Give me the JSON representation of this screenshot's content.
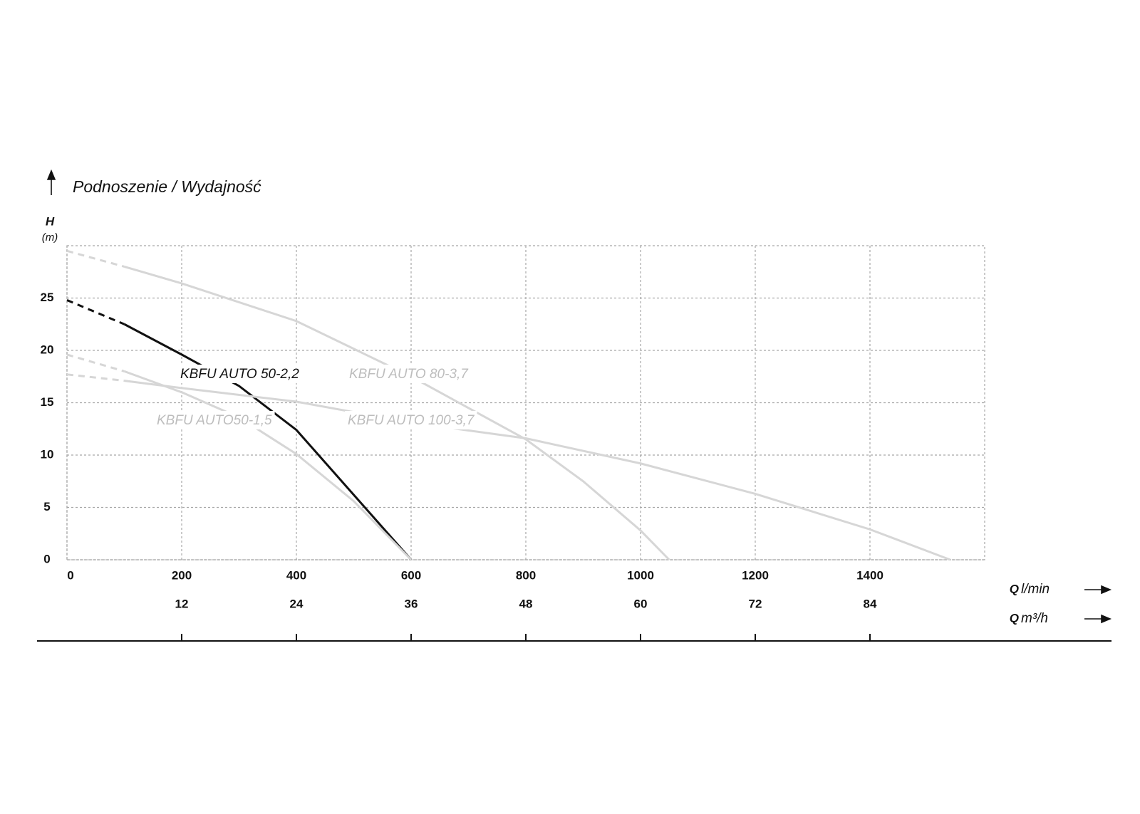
{
  "chart_data": {
    "type": "line",
    "title": "Podnoszenie / Wydajność",
    "ylabel": "H",
    "yunit": "(m)",
    "xlabel": "Q",
    "xunit": "l/min",
    "x2label": "Q",
    "x2unit": "m³/h",
    "xlim": [
      0,
      1600
    ],
    "xticks": [
      0,
      200,
      400,
      600,
      800,
      1000,
      1200,
      1400
    ],
    "x2lim": [
      0,
      96
    ],
    "x2ticks": [
      12,
      24,
      36,
      48,
      60,
      72,
      84
    ],
    "ylim": [
      0,
      30
    ],
    "yticks": [
      0,
      5,
      10,
      15,
      20,
      25
    ],
    "grid": true,
    "dashed_below_x": 100,
    "series": [
      {
        "name": "KBFU AUTO 50-2,2",
        "color": "#111111",
        "x": [
          0,
          100,
          200,
          300,
          400,
          500,
          600
        ],
        "values": [
          24.8,
          22.5,
          19.6,
          16.6,
          12.4,
          6.2,
          0
        ]
      },
      {
        "name": "KBFU AUTO 80-3,7",
        "color": "#d6d6d6",
        "x": [
          0,
          100,
          200,
          400,
          600,
          800,
          900,
          1000,
          1050
        ],
        "values": [
          29.5,
          28,
          26.4,
          22.8,
          17.5,
          11.5,
          7.5,
          2.8,
          0
        ]
      },
      {
        "name": "KBFU AUTO 100-3,7",
        "color": "#d6d6d6",
        "x": [
          0,
          100,
          200,
          400,
          600,
          800,
          1000,
          1200,
          1400,
          1540
        ],
        "values": [
          17.7,
          17.1,
          16.4,
          15.1,
          13.1,
          11.6,
          9.2,
          6.3,
          2.9,
          0
        ]
      },
      {
        "name": "KBFU AUTO50-1,5",
        "color": "#d6d6d6",
        "x": [
          0,
          100,
          200,
          300,
          400,
          500,
          600
        ],
        "values": [
          19.6,
          18,
          16,
          13.6,
          10.1,
          5.6,
          0
        ]
      }
    ]
  }
}
